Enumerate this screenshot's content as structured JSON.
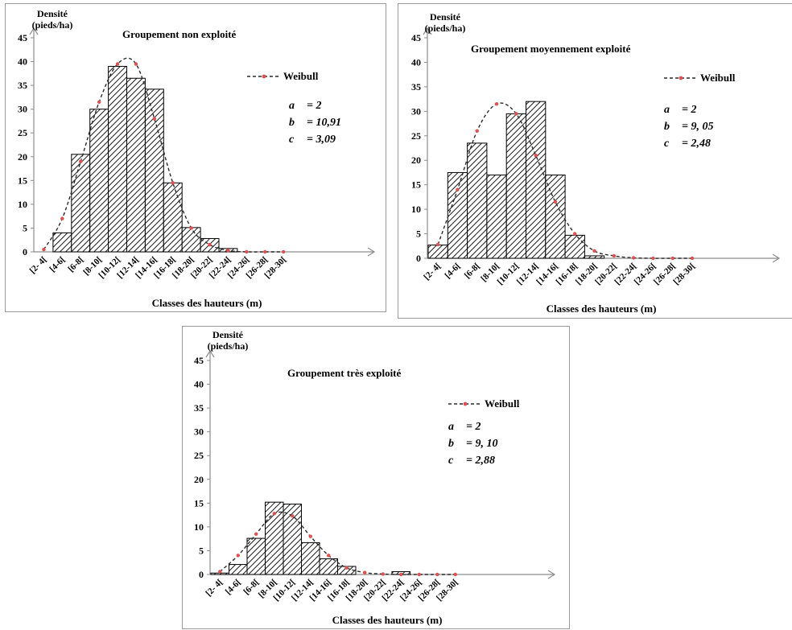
{
  "chart_data": [
    {
      "type": "bar",
      "title": "Groupement non exploité",
      "ylabel": "Densité (pieds/ha)",
      "ylabel_lines": [
        "Densité",
        "(pieds/ha)"
      ],
      "xlabel": "Classes des hauteurs (m)",
      "ylim": [
        0,
        45
      ],
      "yticks": [
        "0",
        "5",
        "10",
        "15",
        "20",
        "25",
        "30",
        "35",
        "40",
        "45"
      ],
      "categories": [
        "[2- 4[",
        "[4-6[",
        "[6-8[",
        "[8-10[",
        "[10-12[",
        "[12-14[",
        "[14-16[",
        "[16-18[",
        "[18-20[",
        "[20-22[",
        "[22-24[",
        "[24-26[",
        "[26-28[",
        "[28-30["
      ],
      "series": [
        {
          "values": [
            0,
            4,
            20.5,
            30,
            39,
            36.5,
            34.2,
            14.5,
            5.1,
            2.8,
            0.7,
            0,
            0,
            0
          ]
        },
        {
          "name": "Weibull",
          "type": "line",
          "values": [
            0.5,
            7,
            19,
            31.5,
            39.5,
            39.5,
            28,
            14.5,
            5,
            1.5,
            0.3,
            0,
            0,
            0
          ]
        }
      ],
      "legend": "Weibull",
      "params": [
        {
          "name": "a",
          "value": "= 2"
        },
        {
          "name": "b",
          "value": "= 10,91"
        },
        {
          "name": "c",
          "value": "= 3,09"
        }
      ]
    },
    {
      "type": "bar",
      "title": "Groupement moyennement  exploité",
      "ylabel": "Densité (pieds/ha)",
      "ylabel_lines": [
        "Densité",
        "(pieds/ha)"
      ],
      "xlabel": "Classes des hauteurs (m)",
      "ylim": [
        0,
        45
      ],
      "yticks": [
        "0",
        "5",
        "10",
        "15",
        "20",
        "25",
        "30",
        "35",
        "40",
        "45"
      ],
      "categories": [
        "[2- 4[",
        "[4-6[",
        "[6-8[",
        "[8-10[",
        "[10-12[",
        "[12-14[",
        "[14-16[",
        "[16-18[",
        "[18-20[",
        "[20-22[",
        "[22-24[",
        "[24-26[",
        "[26-28[",
        "[28-30["
      ],
      "series": [
        {
          "values": [
            2.7,
            17.5,
            23.5,
            17,
            29.5,
            32,
            17,
            4.7,
            0.5,
            0,
            0,
            0,
            0,
            0
          ]
        },
        {
          "name": "Weibull",
          "type": "line",
          "values": [
            2.8,
            14,
            26,
            31.5,
            29.5,
            21,
            11.5,
            5,
            1.5,
            0.5,
            0.1,
            0,
            0,
            0
          ]
        }
      ],
      "legend": "Weibull",
      "params": [
        {
          "name": "a",
          "value": "= 2"
        },
        {
          "name": "b",
          "value": "= 9, 05"
        },
        {
          "name": "c",
          "value": "= 2,48"
        }
      ]
    },
    {
      "type": "bar",
      "title": "Groupement très exploité",
      "ylabel": "Densité (pieds/ha)",
      "ylabel_lines": [
        "Densité",
        "(pieds/ha)"
      ],
      "xlabel": "Classes des hauteurs (m)",
      "ylim": [
        0,
        45
      ],
      "yticks": [
        "0",
        "5",
        "10",
        "15",
        "20",
        "25",
        "30",
        "35",
        "40",
        "45"
      ],
      "categories": [
        "[2- 4[",
        "[4-6[",
        "[6-8[",
        "[8-10[",
        "[10-12[",
        "[12-14[",
        "[14-16[",
        "[16-18[",
        "[18-20[",
        "[20-22[",
        "[22-24[",
        "[24-26[",
        "[26-28[",
        "[28-30["
      ],
      "series": [
        {
          "values": [
            0.3,
            2.1,
            7.6,
            15.2,
            14.8,
            6.7,
            3.3,
            1.7,
            0,
            0,
            0.6,
            0,
            0,
            0
          ]
        },
        {
          "name": "Weibull",
          "type": "line",
          "values": [
            0.6,
            4,
            8.5,
            12.8,
            12.3,
            8,
            4,
            1.4,
            0.4,
            0.1,
            0,
            0,
            0,
            0
          ]
        }
      ],
      "legend": "Weibull",
      "params": [
        {
          "name": "a",
          "value": "= 2"
        },
        {
          "name": "b",
          "value": "= 9, 10"
        },
        {
          "name": "c",
          "value": "= 2,88"
        }
      ]
    }
  ]
}
